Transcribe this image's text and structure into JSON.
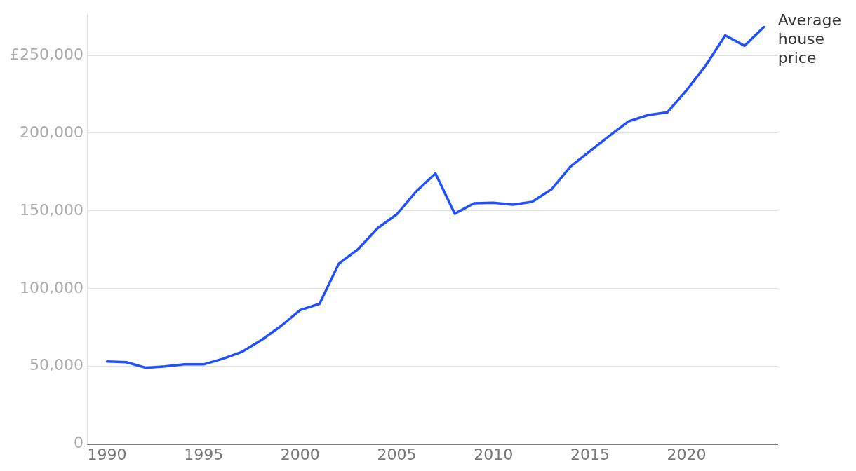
{
  "chart_data": {
    "type": "line",
    "x": [
      1990,
      1991,
      1992,
      1993,
      1994,
      1995,
      1996,
      1997,
      1998,
      1999,
      2000,
      2001,
      2002,
      2003,
      2004,
      2005,
      2006,
      2007,
      2008,
      2009,
      2010,
      2011,
      2012,
      2013,
      2014,
      2015,
      2016,
      2017,
      2018,
      2019,
      2020,
      2021,
      2022,
      2023,
      2024
    ],
    "series": [
      {
        "name": "Average house price",
        "color": "#1f4fff",
        "values": [
          53100,
          52700,
          49100,
          50000,
          51300,
          51300,
          54900,
          59400,
          67000,
          75900,
          86200,
          90200,
          116100,
          125400,
          138800,
          147800,
          162500,
          174100,
          148200,
          154900,
          155300,
          154000,
          155800,
          163800,
          178600,
          188400,
          198200,
          207600,
          211600,
          213400,
          227700,
          243700,
          262900,
          256200,
          268300
        ]
      }
    ],
    "xlim": [
      1989,
      2024.7
    ],
    "xticks": [
      1990,
      1995,
      2000,
      2005,
      2010,
      2015,
      2020
    ],
    "ylim": [
      0,
      277000
    ],
    "yticks": [
      0,
      {
        "value": 50000,
        "label": "50,000"
      },
      {
        "value": 100000,
        "label": "100,000"
      },
      {
        "value": 150000,
        "label": "150,000"
      },
      {
        "value": 200000,
        "label": "200,000"
      },
      {
        "value": 250000,
        "label": "£250,000"
      }
    ],
    "grid": "y",
    "legend": false,
    "marker": "none",
    "line_style": "solid"
  }
}
